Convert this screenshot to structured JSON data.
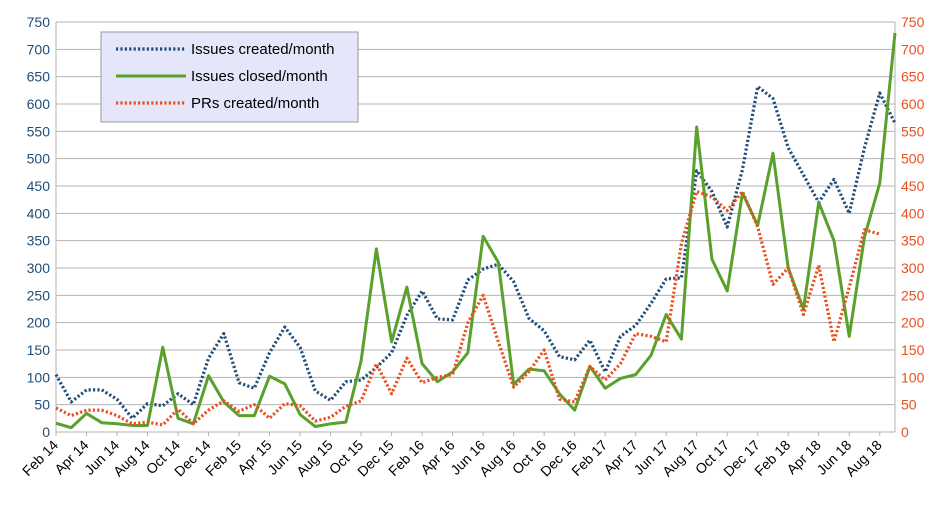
{
  "chart_data": {
    "type": "line",
    "title": "",
    "xlabel": "",
    "ylabel": "",
    "ylim": [
      0,
      750
    ],
    "y2lim": [
      0,
      750
    ],
    "yticks": [
      0,
      50,
      100,
      150,
      200,
      250,
      300,
      350,
      400,
      450,
      500,
      550,
      600,
      650,
      700,
      750
    ],
    "grid": true,
    "legend_position": "top-left",
    "colors": {
      "left_axis_labels": "#1f4e79",
      "right_axis_labels": "#e8501e",
      "grid": "#b3b3b3",
      "legend_background": "#e6e6fa"
    },
    "x_labels": [
      "Feb 14",
      "Apr 14",
      "Jun 14",
      "Aug 14",
      "Oct 14",
      "Dec 14",
      "Feb 15",
      "Apr 15",
      "Jun 15",
      "Aug 15",
      "Oct 15",
      "Dec 15",
      "Feb 16",
      "Apr 16",
      "Jun 16",
      "Aug 16",
      "Oct 16",
      "Dec 16",
      "Feb 17",
      "Apr 17",
      "Jun 17",
      "Aug 17",
      "Oct 17",
      "Dec 17",
      "Feb 18",
      "Apr 18",
      "Jun 18",
      "Aug 18"
    ],
    "x": [
      "Feb 14",
      "Mar 14",
      "Apr 14",
      "May 14",
      "Jun 14",
      "Jul 14",
      "Aug 14",
      "Sep 14",
      "Oct 14",
      "Nov 14",
      "Dec 14",
      "Jan 15",
      "Feb 15",
      "Mar 15",
      "Apr 15",
      "May 15",
      "Jun 15",
      "Jul 15",
      "Aug 15",
      "Sep 15",
      "Oct 15",
      "Nov 15",
      "Dec 15",
      "Jan 16",
      "Feb 16",
      "Mar 16",
      "Apr 16",
      "May 16",
      "Jun 16",
      "Jul 16",
      "Aug 16",
      "Sep 16",
      "Oct 16",
      "Nov 16",
      "Dec 16",
      "Jan 17",
      "Feb 17",
      "Mar 17",
      "Apr 17",
      "May 17",
      "Jun 17",
      "Jul 17",
      "Aug 17",
      "Sep 17",
      "Oct 17",
      "Nov 17",
      "Dec 17",
      "Jan 18",
      "Feb 18",
      "Mar 18",
      "Apr 18",
      "May 18",
      "Jun 18",
      "Jul 18",
      "Aug 18",
      "Sep 18"
    ],
    "series": [
      {
        "name": "Issues created/month",
        "color": "#1f4e79",
        "style": "dotted",
        "axis": "left",
        "values": [
          105,
          55,
          77,
          77,
          60,
          25,
          52,
          48,
          70,
          50,
          135,
          180,
          90,
          80,
          145,
          192,
          155,
          75,
          58,
          92,
          95,
          118,
          145,
          213,
          258,
          207,
          205,
          278,
          298,
          307,
          275,
          208,
          185,
          138,
          132,
          168,
          110,
          175,
          195,
          235,
          280,
          282,
          478,
          440,
          375,
          480,
          632,
          610,
          520,
          470,
          420,
          462,
          400,
          520,
          620,
          565
        ]
      },
      {
        "name": "Issues closed/month",
        "color": "#5aa02c",
        "style": "solid",
        "axis": "left",
        "values": [
          16,
          8,
          34,
          17,
          15,
          12,
          12,
          155,
          25,
          15,
          103,
          55,
          30,
          30,
          102,
          88,
          32,
          10,
          15,
          18,
          130,
          335,
          165,
          265,
          125,
          92,
          110,
          145,
          358,
          310,
          87,
          115,
          112,
          70,
          40,
          120,
          80,
          98,
          105,
          140,
          215,
          170,
          558,
          316,
          258,
          437,
          378,
          510,
          300,
          225,
          420,
          350,
          175,
          357,
          455,
          730
        ]
      },
      {
        "name": "PRs created/month",
        "color": "#e8501e",
        "style": "dotted",
        "axis": "right",
        "values": [
          44,
          30,
          40,
          40,
          30,
          15,
          18,
          13,
          42,
          15,
          40,
          57,
          38,
          50,
          25,
          52,
          48,
          20,
          27,
          47,
          57,
          125,
          70,
          135,
          90,
          100,
          105,
          200,
          250,
          165,
          82,
          110,
          150,
          60,
          55,
          120,
          95,
          125,
          180,
          175,
          165,
          345,
          440,
          430,
          405,
          440,
          375,
          270,
          300,
          215,
          305,
          165,
          265,
          370,
          362,
          null
        ]
      }
    ]
  }
}
